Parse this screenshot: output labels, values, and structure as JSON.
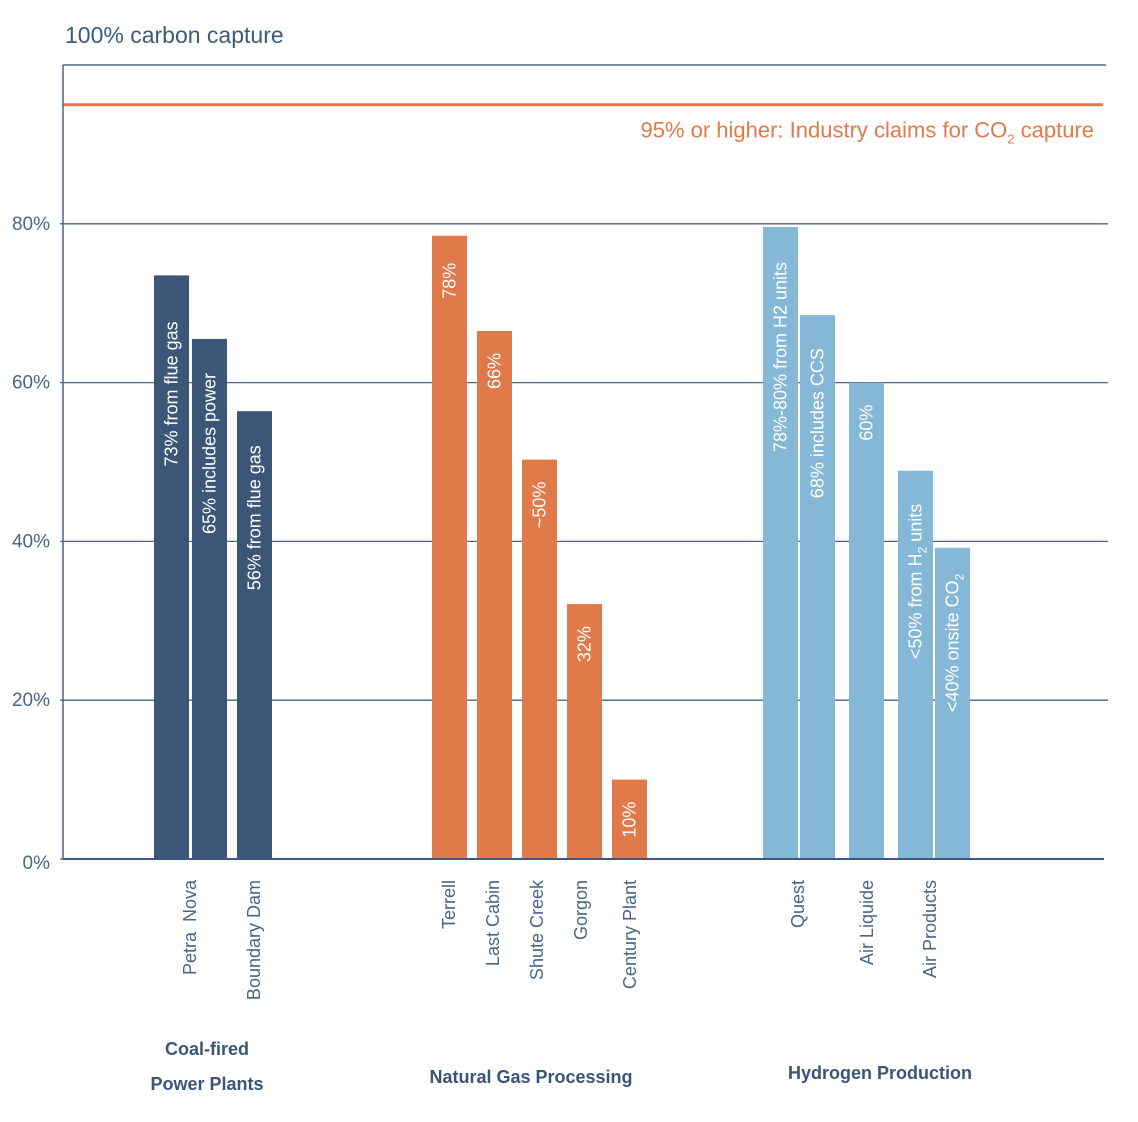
{
  "chart_data": {
    "type": "bar",
    "title": "100% carbon capture",
    "xlabel": "",
    "ylabel": "",
    "ylim": [
      0,
      100
    ],
    "yticks": [
      {
        "value": 0,
        "label": "0%"
      },
      {
        "value": 20,
        "label": "20%"
      },
      {
        "value": 40,
        "label": "40%"
      },
      {
        "value": 60,
        "label": "60%"
      },
      {
        "value": 80,
        "label": "80%"
      }
    ],
    "grid": true,
    "reference_line": {
      "value": 95,
      "label_main": "95% or higher: Industry claims for CO",
      "label_sub": "2",
      "label_tail": " capture",
      "color": "#e07a4a"
    },
    "groups": [
      {
        "name_lines": [
          "Coal-fired",
          "Power Plants"
        ],
        "color": "#3b5677",
        "categories": [
          {
            "name": "Petra  Nova",
            "bars": [
              {
                "value": 73.5,
                "label": "73% from flue gas"
              },
              {
                "value": 65.5,
                "label": "65% includes power"
              }
            ]
          },
          {
            "name": "Boundary Dam",
            "bars": [
              {
                "value": 56.4,
                "label": "56% from flue gas"
              }
            ]
          }
        ]
      },
      {
        "name_lines": [
          "Natural Gas Processing"
        ],
        "color": "#e07a4a",
        "categories": [
          {
            "name": "Terrell",
            "bars": [
              {
                "value": 78.5,
                "label": "78%"
              }
            ]
          },
          {
            "name": "Last Cabin",
            "bars": [
              {
                "value": 66.5,
                "label": "66%"
              }
            ]
          },
          {
            "name": "Shute Creek",
            "bars": [
              {
                "value": 50.3,
                "label": "~50%"
              }
            ]
          },
          {
            "name": "Gorgon",
            "bars": [
              {
                "value": 32.1,
                "label": "32%"
              }
            ]
          },
          {
            "name": "Century Plant",
            "bars": [
              {
                "value": 10.0,
                "label": "10%"
              }
            ]
          }
        ]
      },
      {
        "name_lines": [
          "Hydrogen Production"
        ],
        "color": "#85b8d6",
        "categories": [
          {
            "name": "Quest",
            "bars": [
              {
                "value": 79.6,
                "label": "78%-80% from H2 units"
              },
              {
                "value": 68.5,
                "label": "68% includes CCS"
              }
            ]
          },
          {
            "name": "Air Liquide",
            "bars": [
              {
                "value": 60.0,
                "label": "60%"
              }
            ]
          },
          {
            "name": "Air Products",
            "bars": [
              {
                "value": 48.9,
                "label": "<50% from H",
                "sub": "2",
                "tail": " units"
              },
              {
                "value": 39.2,
                "label": "<40% onsite CO",
                "sub": "2",
                "tail": ""
              }
            ]
          }
        ]
      }
    ]
  }
}
